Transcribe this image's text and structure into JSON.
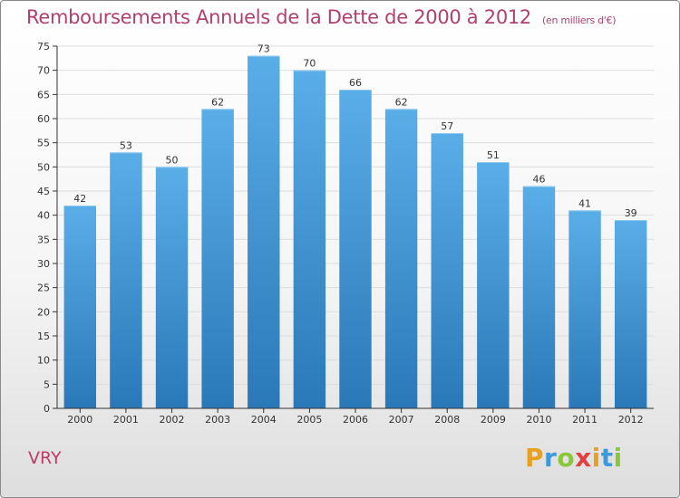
{
  "header": {
    "title": "Remboursements Annuels de la Dette de 2000 à 2012",
    "subtitle": "(en milliers d'€)"
  },
  "footer": {
    "city": "VRY",
    "logo_letters": [
      "P",
      "r",
      "o",
      "x",
      "i",
      "t",
      "i"
    ],
    "logo_colors": [
      "#e8a020",
      "#3a9adc",
      "#8ac83a",
      "#e04040",
      "#e8a020",
      "#3a9adc",
      "#8ac83a"
    ]
  },
  "colors": {
    "bar_top": "#5aaee8",
    "bar_bottom": "#2a78b8",
    "gridline": "#dddddd",
    "axis": "#333333"
  },
  "chart_data": {
    "type": "bar",
    "title": "Remboursements Annuels de la Dette de 2000 à 2012",
    "subtitle": "(en milliers d'€)",
    "categories": [
      "2000",
      "2001",
      "2002",
      "2003",
      "2004",
      "2005",
      "2006",
      "2007",
      "2008",
      "2009",
      "2010",
      "2011",
      "2012"
    ],
    "values": [
      42,
      53,
      50,
      62,
      73,
      70,
      66,
      62,
      57,
      51,
      46,
      41,
      39
    ],
    "ylim": [
      0,
      75
    ],
    "yticks": [
      0,
      5,
      10,
      15,
      20,
      25,
      30,
      35,
      40,
      45,
      50,
      55,
      60,
      65,
      70,
      75
    ],
    "grid": true,
    "data_labels": true
  }
}
